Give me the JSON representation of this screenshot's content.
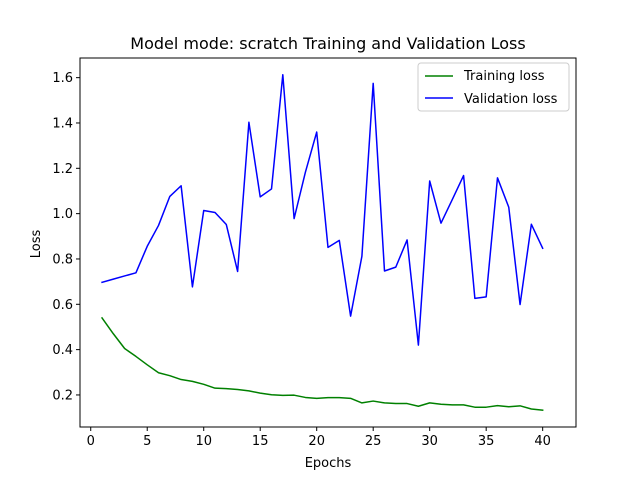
{
  "chart_data": {
    "type": "line",
    "title": "Model mode: scratch Training and Validation Loss",
    "xlabel": "Epochs",
    "ylabel": "Loss",
    "xlim": [
      -0.95,
      42.95
    ],
    "ylim": [
      0.0586,
      1.6867
    ],
    "xticks": [
      0,
      5,
      10,
      15,
      20,
      25,
      30,
      35,
      40
    ],
    "yticks": [
      0.2,
      0.4,
      0.6,
      0.8,
      1.0,
      1.2,
      1.4,
      1.6
    ],
    "ytick_labels": [
      "0.2",
      "0.4",
      "0.6",
      "0.8",
      "1.0",
      "1.2",
      "1.4",
      "1.6"
    ],
    "grid": false,
    "legend_position": "top-right",
    "x": [
      1,
      2,
      3,
      4,
      5,
      6,
      7,
      8,
      9,
      10,
      11,
      12,
      13,
      14,
      15,
      16,
      17,
      18,
      19,
      20,
      21,
      22,
      23,
      24,
      25,
      26,
      27,
      28,
      29,
      30,
      31,
      32,
      33,
      34,
      35,
      36,
      37,
      38,
      39,
      40
    ],
    "series": [
      {
        "name": "Training loss",
        "color": "#008000",
        "values": [
          0.54,
          0.47,
          0.405,
          0.37,
          0.333,
          0.298,
          0.285,
          0.268,
          0.26,
          0.247,
          0.23,
          0.228,
          0.224,
          0.218,
          0.208,
          0.201,
          0.198,
          0.199,
          0.189,
          0.185,
          0.188,
          0.188,
          0.185,
          0.165,
          0.173,
          0.165,
          0.162,
          0.162,
          0.15,
          0.165,
          0.159,
          0.156,
          0.156,
          0.146,
          0.146,
          0.153,
          0.148,
          0.152,
          0.138,
          0.133
        ]
      },
      {
        "name": "Validation loss",
        "color": "#0000ff",
        "values": [
          0.697,
          0.711,
          0.725,
          0.739,
          0.856,
          0.948,
          1.076,
          1.123,
          0.677,
          1.014,
          1.005,
          0.952,
          0.745,
          1.403,
          1.074,
          1.109,
          1.613,
          0.978,
          1.183,
          1.36,
          0.851,
          0.882,
          0.548,
          0.812,
          1.575,
          0.747,
          0.764,
          0.884,
          0.42,
          1.144,
          0.958,
          1.062,
          1.168,
          0.626,
          0.633,
          1.158,
          1.028,
          0.599,
          0.953,
          0.847
        ]
      }
    ]
  }
}
